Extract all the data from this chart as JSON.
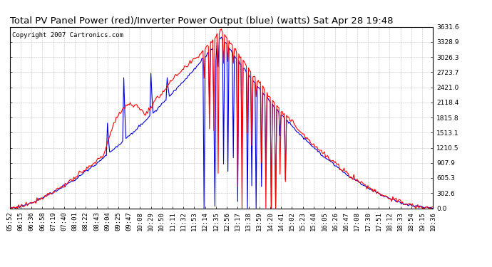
{
  "title": "Total PV Panel Power (red)/Inverter Power Output (blue) (watts) Sat Apr 28 19:48",
  "copyright_text": "Copyright 2007 Cartronics.com",
  "background_color": "#ffffff",
  "plot_bg_color": "#ffffff",
  "grid_color": "#b0b0b0",
  "y_min": 0.0,
  "y_max": 3631.6,
  "y_ticks": [
    0.0,
    302.6,
    605.3,
    907.9,
    1210.5,
    1513.1,
    1815.8,
    2118.4,
    2421.0,
    2723.7,
    3026.3,
    3328.9,
    3631.6
  ],
  "x_labels": [
    "05:52",
    "06:15",
    "06:36",
    "06:58",
    "07:19",
    "07:40",
    "08:01",
    "08:22",
    "08:43",
    "09:04",
    "09:25",
    "09:47",
    "10:08",
    "10:29",
    "10:50",
    "11:11",
    "11:32",
    "11:53",
    "12:14",
    "12:35",
    "12:56",
    "13:17",
    "13:38",
    "13:59",
    "14:20",
    "14:41",
    "15:02",
    "15:23",
    "15:44",
    "16:05",
    "16:26",
    "16:47",
    "17:08",
    "17:30",
    "17:51",
    "18:12",
    "18:33",
    "18:54",
    "19:15",
    "19:36"
  ],
  "pv_color": "#ff0000",
  "inv_color": "#0000dd",
  "line_width": 0.8,
  "title_fontsize": 9.5,
  "tick_fontsize": 6.5,
  "copyright_fontsize": 6.5
}
